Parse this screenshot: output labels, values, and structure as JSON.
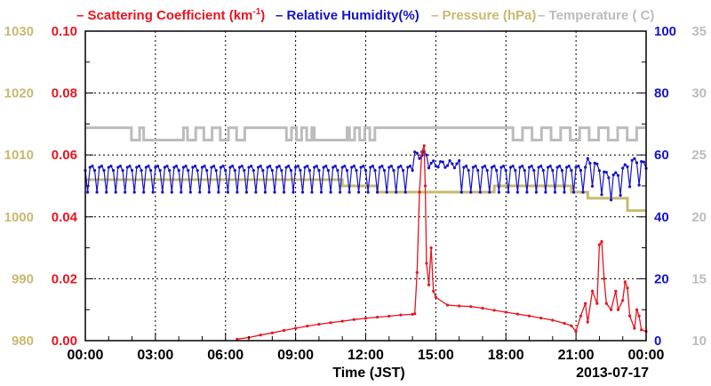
{
  "chart_data": {
    "type": "line",
    "xlabel": "Time (JST)",
    "date_label": "2013-07-17",
    "x_ticks": [
      "00:00",
      "03:00",
      "06:00",
      "09:00",
      "12:00",
      "15:00",
      "18:00",
      "21:00",
      "00:00"
    ],
    "xlim_hours": [
      0,
      24
    ],
    "grid": true,
    "legend": {
      "placement": "top",
      "scattering": {
        "prefix": "Scattering Coefficient (km",
        "sup": "-1",
        "suffix": ")"
      },
      "humidity": "Relative Humidity(%)",
      "pressure": "Pressure (hPa)",
      "temperature": "Temperature (  C)"
    },
    "axes": {
      "pressure": {
        "side": "left-outer",
        "lim": [
          980,
          1030
        ],
        "ticks": [
          "980",
          "990",
          "1000",
          "1010",
          "1020",
          "1030"
        ],
        "color": "#c8b96e"
      },
      "scattering": {
        "side": "left-inner",
        "lim": [
          0,
          0.1
        ],
        "ticks": [
          "0.00",
          "0.02",
          "0.04",
          "0.06",
          "0.08",
          "0.10"
        ],
        "color": "#e8141e"
      },
      "humidity": {
        "side": "right-inner",
        "lim": [
          0,
          100
        ],
        "ticks": [
          "0",
          "20",
          "40",
          "60",
          "80",
          "100"
        ],
        "color": "#1414c8"
      },
      "temperature": {
        "side": "right-outer",
        "lim": [
          10,
          35
        ],
        "ticks": [
          "10",
          "15",
          "20",
          "25",
          "30",
          "35"
        ],
        "color": "#bcbcbc"
      }
    },
    "series": [
      {
        "name": "Pressure (hPa)",
        "axis": "pressure",
        "color": "#c8b96e",
        "points": [
          [
            0,
            1006
          ],
          [
            11,
            1006
          ],
          [
            11,
            1005
          ],
          [
            12.5,
            1005
          ],
          [
            12.5,
            1004
          ],
          [
            17.5,
            1004
          ],
          [
            17.5,
            1005
          ],
          [
            20.8,
            1005
          ],
          [
            20.8,
            1004
          ],
          [
            21.5,
            1004
          ],
          [
            21.5,
            1003
          ],
          [
            23.2,
            1003
          ],
          [
            23.2,
            1001
          ],
          [
            24,
            1001
          ]
        ]
      },
      {
        "name": "Temperature (  C)",
        "axis": "temperature",
        "color": "#bcbcbc",
        "baseline": 27.2,
        "low": 26.2,
        "dips": [
          [
            1.8,
            2.5,
            1
          ],
          [
            4.2,
            7.0,
            4
          ],
          [
            8.5,
            9.8,
            3
          ],
          [
            11.2,
            12.5,
            3
          ],
          [
            18.1,
            23.8,
            7
          ]
        ],
        "lows": [
          [
            2.5,
            4.2
          ],
          [
            9.8,
            11.2
          ]
        ]
      },
      {
        "name": "Relative Humidity(%)",
        "axis": "humidity",
        "color": "#1414c8",
        "period_hours": 0.4,
        "base": 55,
        "amplitude_low": 9,
        "events": [
          [
            14.05,
            14.6,
            60
          ],
          [
            14.6,
            16.0,
            57
          ]
        ]
      },
      {
        "name": "Scattering Coefficient (km-1)",
        "axis": "scattering",
        "color": "#e8141e",
        "points": [
          [
            6.5,
            0.0005
          ],
          [
            7.0,
            0.001
          ],
          [
            7.5,
            0.0018
          ],
          [
            8.0,
            0.0025
          ],
          [
            8.5,
            0.0033
          ],
          [
            9.0,
            0.004
          ],
          [
            9.5,
            0.0047
          ],
          [
            10.0,
            0.0053
          ],
          [
            10.5,
            0.0058
          ],
          [
            11.0,
            0.0063
          ],
          [
            11.5,
            0.0068
          ],
          [
            12.0,
            0.0072
          ],
          [
            12.5,
            0.0076
          ],
          [
            13.0,
            0.0079
          ],
          [
            13.5,
            0.0083
          ],
          [
            14.0,
            0.0085
          ],
          [
            14.1,
            0.0087
          ],
          [
            14.2,
            0.022
          ],
          [
            14.3,
            0.048
          ],
          [
            14.4,
            0.061
          ],
          [
            14.5,
            0.063
          ],
          [
            14.55,
            0.05
          ],
          [
            14.6,
            0.025
          ],
          [
            14.7,
            0.018
          ],
          [
            14.8,
            0.03
          ],
          [
            14.9,
            0.016
          ],
          [
            15.0,
            0.014
          ],
          [
            15.5,
            0.0115
          ],
          [
            16.0,
            0.0112
          ],
          [
            16.5,
            0.011
          ],
          [
            17.0,
            0.0105
          ],
          [
            17.5,
            0.0098
          ],
          [
            18.0,
            0.0092
          ],
          [
            18.5,
            0.0086
          ],
          [
            19.0,
            0.008
          ],
          [
            19.5,
            0.0073
          ],
          [
            20.0,
            0.0066
          ],
          [
            20.5,
            0.0056
          ],
          [
            20.8,
            0.0048
          ],
          [
            21.0,
            0.003
          ],
          [
            21.2,
            0.008
          ],
          [
            21.4,
            0.012
          ],
          [
            21.5,
            0.006
          ],
          [
            21.7,
            0.016
          ],
          [
            21.9,
            0.012
          ],
          [
            22.0,
            0.031
          ],
          [
            22.1,
            0.032
          ],
          [
            22.2,
            0.02
          ],
          [
            22.3,
            0.012
          ],
          [
            22.5,
            0.01
          ],
          [
            22.7,
            0.016
          ],
          [
            22.8,
            0.01
          ],
          [
            23.0,
            0.013
          ],
          [
            23.1,
            0.019
          ],
          [
            23.2,
            0.017
          ],
          [
            23.3,
            0.008
          ],
          [
            23.5,
            0.004
          ],
          [
            23.6,
            0.01
          ],
          [
            23.7,
            0.008
          ],
          [
            23.8,
            0.0035
          ],
          [
            24,
            0.003
          ]
        ]
      }
    ]
  }
}
